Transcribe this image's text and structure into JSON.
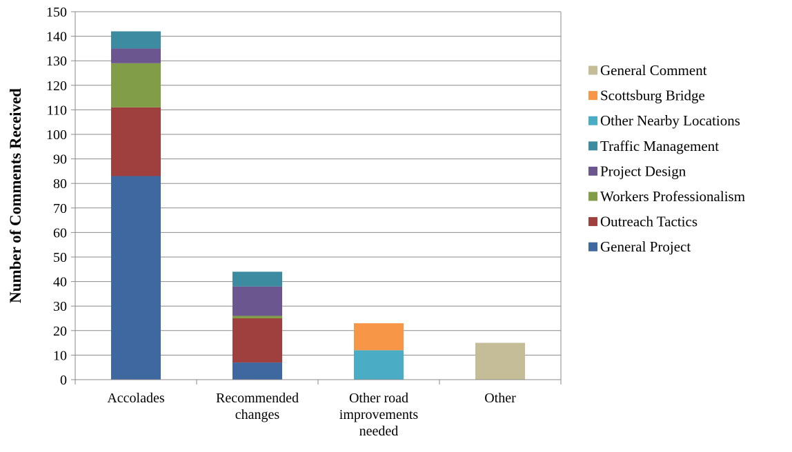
{
  "chart_data": {
    "type": "bar",
    "stacked": true,
    "title": "",
    "xlabel": "",
    "ylabel": "Number of Comments Received",
    "ylim": [
      0,
      150
    ],
    "ytick_step": 10,
    "grid": true,
    "legend_position": "right",
    "categories": [
      [
        "Accolades"
      ],
      [
        "Recommended",
        "changes"
      ],
      [
        "Other road",
        "improvements",
        "needed"
      ],
      [
        "Other"
      ]
    ],
    "series": [
      {
        "name": "General Project",
        "color": "#4068A0",
        "values": [
          83,
          7,
          0,
          0
        ]
      },
      {
        "name": "Outreach Tactics",
        "color": "#A0403E",
        "values": [
          28,
          18,
          0,
          0
        ]
      },
      {
        "name": "Workers Professionalism",
        "color": "#819D48",
        "values": [
          18,
          1,
          0,
          0
        ]
      },
      {
        "name": "Project Design",
        "color": "#6C5690",
        "values": [
          6,
          12,
          0,
          0
        ]
      },
      {
        "name": "Traffic Management",
        "color": "#3C8BA0",
        "values": [
          7,
          6,
          0,
          0
        ]
      },
      {
        "name": "Other Nearby Locations",
        "color": "#4BACC6",
        "values": [
          0,
          0,
          12,
          0
        ]
      },
      {
        "name": "Scottsburg Bridge",
        "color": "#F79646",
        "values": [
          0,
          0,
          11,
          0
        ]
      },
      {
        "name": "General Comment",
        "color": "#C4BD97",
        "values": [
          0,
          0,
          0,
          15
        ]
      }
    ]
  }
}
